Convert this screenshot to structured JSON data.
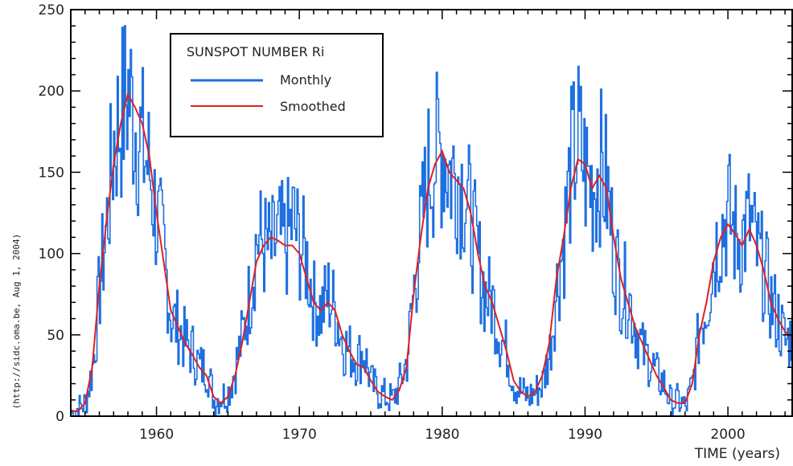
{
  "chart_data": {
    "type": "line",
    "title": "",
    "xlabel": "TIME (years)",
    "ylabel": "",
    "side_note": "(http://sidc.oma.be, Aug 1, 2004)",
    "xlim": [
      1954,
      2004.5
    ],
    "ylim": [
      0,
      250
    ],
    "xticks": [
      1960,
      1970,
      1980,
      1990,
      2000
    ],
    "yticks": [
      0,
      50,
      100,
      150,
      200,
      250
    ],
    "grid": false,
    "legend": {
      "title": "SUNSPOT NUMBER Ri",
      "position": "top-left",
      "entries": [
        "Monthly",
        "Smoothed"
      ]
    },
    "series": [
      {
        "name": "Monthly",
        "color": "#1e6fe0",
        "style": "noisy",
        "x": [
          1954.0,
          1954.5,
          1955.0,
          1955.5,
          1956.0,
          1956.5,
          1957.0,
          1957.5,
          1958.0,
          1958.5,
          1959.0,
          1959.5,
          1960.0,
          1960.5,
          1961.0,
          1961.5,
          1962.0,
          1962.5,
          1963.0,
          1963.5,
          1964.0,
          1964.5,
          1965.0,
          1965.5,
          1966.0,
          1966.5,
          1967.0,
          1967.5,
          1968.0,
          1968.5,
          1969.0,
          1969.5,
          1970.0,
          1970.5,
          1971.0,
          1971.5,
          1972.0,
          1972.5,
          1973.0,
          1973.5,
          1974.0,
          1974.5,
          1975.0,
          1975.5,
          1976.0,
          1976.5,
          1977.0,
          1977.5,
          1978.0,
          1978.5,
          1979.0,
          1979.5,
          1980.0,
          1980.5,
          1981.0,
          1981.5,
          1982.0,
          1982.5,
          1983.0,
          1983.5,
          1984.0,
          1984.5,
          1985.0,
          1985.5,
          1986.0,
          1986.5,
          1987.0,
          1987.5,
          1988.0,
          1988.5,
          1989.0,
          1989.5,
          1990.0,
          1990.5,
          1991.0,
          1991.5,
          1992.0,
          1992.5,
          1993.0,
          1993.5,
          1994.0,
          1994.5,
          1995.0,
          1995.5,
          1996.0,
          1996.5,
          1997.0,
          1997.5,
          1998.0,
          1998.5,
          1999.0,
          1999.5,
          2000.0,
          2000.5,
          2001.0,
          2001.5,
          2002.0,
          2002.5,
          2003.0,
          2003.5,
          2004.0,
          2004.5
        ],
        "y": [
          2,
          5,
          8,
          30,
          80,
          120,
          170,
          185,
          200,
          180,
          165,
          150,
          120,
          100,
          60,
          55,
          45,
          40,
          30,
          30,
          10,
          12,
          15,
          30,
          50,
          75,
          110,
          105,
          100,
          110,
          105,
          120,
          105,
          95,
          70,
          65,
          75,
          65,
          45,
          40,
          35,
          40,
          20,
          15,
          12,
          10,
          20,
          35,
          80,
          115,
          150,
          160,
          165,
          150,
          150,
          140,
          120,
          95,
          75,
          70,
          50,
          40,
          20,
          15,
          12,
          15,
          20,
          40,
          80,
          110,
          155,
          170,
          150,
          140,
          155,
          140,
          100,
          80,
          75,
          55,
          40,
          35,
          25,
          20,
          8,
          10,
          5,
          20,
          55,
          70,
          100,
          115,
          125,
          110,
          110,
          120,
          100,
          90,
          70,
          60,
          45,
          50
        ]
      },
      {
        "name": "Smoothed",
        "color": "#e02020",
        "style": "smooth",
        "x": [
          1954.0,
          1954.5,
          1955.0,
          1955.5,
          1956.0,
          1956.5,
          1957.0,
          1957.5,
          1958.0,
          1958.5,
          1959.0,
          1959.5,
          1960.0,
          1960.5,
          1961.0,
          1961.5,
          1962.0,
          1962.5,
          1963.0,
          1963.5,
          1964.0,
          1964.5,
          1965.0,
          1965.5,
          1966.0,
          1966.5,
          1967.0,
          1967.5,
          1968.0,
          1968.5,
          1969.0,
          1969.5,
          1970.0,
          1970.5,
          1971.0,
          1971.5,
          1972.0,
          1972.5,
          1973.0,
          1973.5,
          1974.0,
          1974.5,
          1975.0,
          1975.5,
          1976.0,
          1976.5,
          1977.0,
          1977.5,
          1978.0,
          1978.5,
          1979.0,
          1979.5,
          1980.0,
          1980.5,
          1981.0,
          1981.5,
          1982.0,
          1982.5,
          1983.0,
          1983.5,
          1984.0,
          1984.5,
          1985.0,
          1985.5,
          1986.0,
          1986.5,
          1987.0,
          1987.5,
          1988.0,
          1988.5,
          1989.0,
          1989.5,
          1990.0,
          1990.5,
          1991.0,
          1991.5,
          1992.0,
          1992.5,
          1993.0,
          1993.5,
          1994.0,
          1994.5,
          1995.0,
          1995.5,
          1996.0,
          1996.5,
          1997.0,
          1997.5,
          1998.0,
          1998.5,
          1999.0,
          1999.5,
          2000.0,
          2000.5,
          2001.0,
          2001.5,
          2002.0,
          2002.5,
          2003.0,
          2003.5,
          2004.0,
          2004.5
        ],
        "y": [
          3,
          3,
          8,
          30,
          80,
          120,
          155,
          180,
          198,
          190,
          180,
          160,
          125,
          95,
          65,
          55,
          45,
          38,
          30,
          25,
          12,
          8,
          12,
          25,
          45,
          70,
          95,
          105,
          110,
          108,
          105,
          105,
          100,
          85,
          70,
          65,
          70,
          65,
          50,
          40,
          32,
          30,
          22,
          15,
          12,
          10,
          16,
          30,
          75,
          110,
          140,
          155,
          163,
          150,
          145,
          140,
          125,
          100,
          80,
          70,
          55,
          40,
          22,
          15,
          12,
          15,
          25,
          45,
          85,
          110,
          140,
          158,
          155,
          140,
          148,
          140,
          110,
          85,
          70,
          55,
          45,
          35,
          25,
          18,
          10,
          8,
          8,
          20,
          50,
          70,
          95,
          110,
          118,
          112,
          105,
          115,
          105,
          90,
          70,
          60,
          52,
          48
        ]
      }
    ]
  }
}
